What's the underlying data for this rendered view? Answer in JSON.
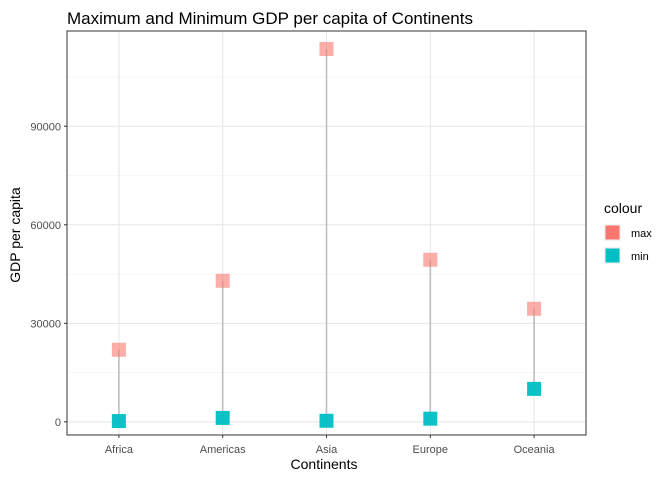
{
  "chart_data": {
    "type": "scatter",
    "title": "Maximum and Minimum GDP per capita of Continents",
    "xlabel": "Continents",
    "ylabel": "GDP per capita",
    "categories": [
      "Africa",
      "Americas",
      "Asia",
      "Europe",
      "Oceania"
    ],
    "series": [
      {
        "name": "max",
        "color": "#F8766D",
        "values": [
          21951,
          42952,
          113523,
          49357,
          34435
        ]
      },
      {
        "name": "min",
        "color": "#00BFC4",
        "values": [
          241,
          1202,
          331,
          974,
          10040
        ]
      }
    ],
    "segments": {
      "color": "#bebebe",
      "from": "min",
      "to": "max"
    },
    "ylim": [
      -4000,
      119000
    ],
    "yticks": [
      0,
      30000,
      60000,
      90000
    ],
    "yticks_labels": [
      "0",
      "30000",
      "60000",
      "90000"
    ],
    "grid": true,
    "legend": {
      "title": "colour",
      "position": "right",
      "entries": [
        "max",
        "min"
      ]
    }
  }
}
